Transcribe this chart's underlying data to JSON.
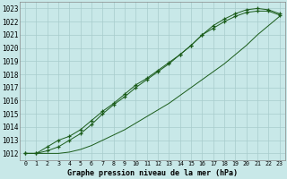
{
  "title": "Graphe pression niveau de la mer (hPa)",
  "bg_color": "#c8e8e8",
  "grid_color": "#a8cccc",
  "line_color": "#1a5c1a",
  "x_values": [
    0,
    1,
    2,
    3,
    4,
    5,
    6,
    7,
    8,
    9,
    10,
    11,
    12,
    13,
    14,
    15,
    16,
    17,
    18,
    19,
    20,
    21,
    22,
    23
  ],
  "line1": [
    1012.0,
    1012.0,
    1012.5,
    1013.0,
    1013.3,
    1013.8,
    1014.5,
    1015.2,
    1015.8,
    1016.5,
    1017.2,
    1017.7,
    1018.3,
    1018.9,
    1019.5,
    1020.2,
    1021.0,
    1021.5,
    1022.0,
    1022.4,
    1022.7,
    1022.8,
    1022.8,
    1022.5
  ],
  "line2": [
    1012.0,
    1012.0,
    1012.2,
    1012.5,
    1013.0,
    1013.5,
    1014.2,
    1015.0,
    1015.7,
    1016.3,
    1017.0,
    1017.6,
    1018.2,
    1018.8,
    1019.5,
    1020.2,
    1021.0,
    1021.7,
    1022.2,
    1022.6,
    1022.9,
    1023.0,
    1022.9,
    1022.6
  ],
  "line3": [
    1012.0,
    1012.0,
    1012.0,
    1012.0,
    1012.1,
    1012.3,
    1012.6,
    1013.0,
    1013.4,
    1013.8,
    1014.3,
    1014.8,
    1015.3,
    1015.8,
    1016.4,
    1017.0,
    1017.6,
    1018.2,
    1018.8,
    1019.5,
    1020.2,
    1021.0,
    1021.7,
    1022.4
  ],
  "ylim_min": 1011.5,
  "ylim_max": 1023.5,
  "yticks": [
    1012,
    1013,
    1014,
    1015,
    1016,
    1017,
    1018,
    1019,
    1020,
    1021,
    1022,
    1023
  ]
}
